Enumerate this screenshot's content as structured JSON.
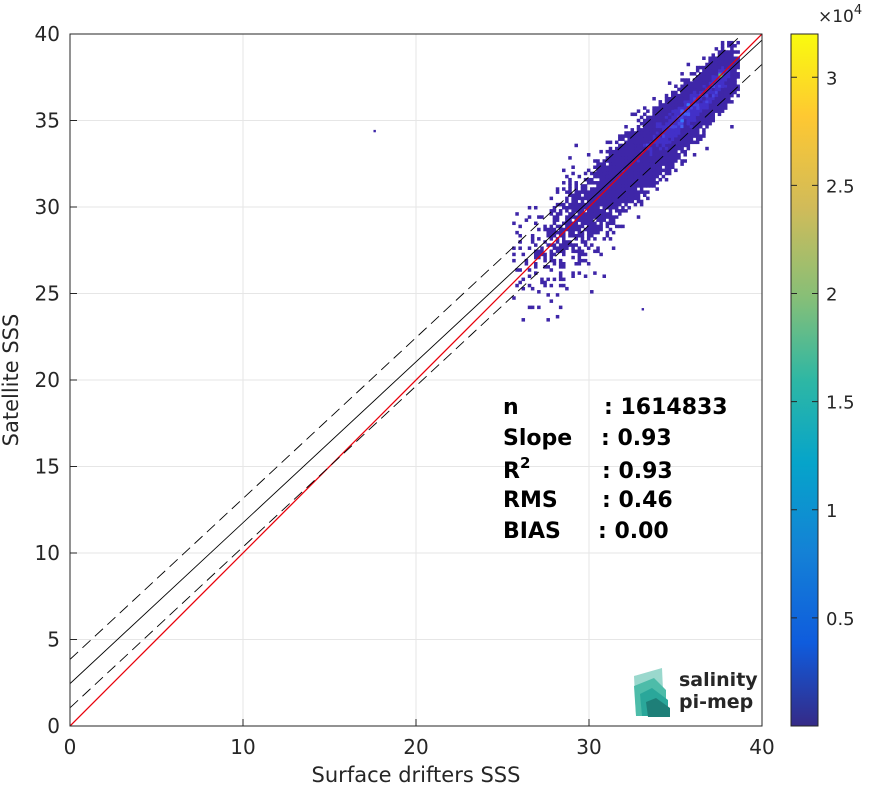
{
  "chart_data": {
    "type": "heatmap",
    "subtype": "2d-density-scatter",
    "xlabel": "Surface drifters SSS",
    "ylabel": "Satellite SSS",
    "xlim": [
      0,
      40
    ],
    "ylim": [
      0,
      40
    ],
    "x_ticks": [
      "0",
      "10",
      "20",
      "30",
      "40"
    ],
    "y_ticks": [
      "0",
      "5",
      "10",
      "15",
      "20",
      "25",
      "30",
      "35",
      "40"
    ],
    "grid": true,
    "colormap": "parula",
    "colorbar": {
      "range": [
        0,
        32000
      ],
      "exponent_label": "×10",
      "exponent_power": "4",
      "ticks": [
        {
          "label": "0.5",
          "value": 5000
        },
        {
          "label": "1",
          "value": 10000
        },
        {
          "label": "1.5",
          "value": 15000
        },
        {
          "label": "2",
          "value": 20000
        },
        {
          "label": "2.5",
          "value": 25000
        },
        {
          "label": "3",
          "value": 30000
        }
      ]
    },
    "lines": [
      {
        "kind": "one-to-one",
        "color": "#e8000b",
        "style": "solid",
        "from": [
          0,
          0
        ],
        "to": [
          40,
          40
        ]
      },
      {
        "kind": "regression",
        "color": "#000000",
        "style": "solid",
        "slope": 0.93,
        "intercept": 2.45
      },
      {
        "kind": "regression-plus-1sd",
        "color": "#000000",
        "style": "dashed",
        "slope": 0.93,
        "intercept": 3.85
      },
      {
        "kind": "regression-minus-1sd",
        "color": "#000000",
        "style": "dashed",
        "slope": 0.93,
        "intercept": 1.05
      }
    ],
    "density_clusters": [
      {
        "x": 35.8,
        "y": 35.6,
        "sx": 1.3,
        "sy": 1.3,
        "corr": 0.85,
        "n": 4200
      },
      {
        "x": 33.5,
        "y": 33.3,
        "sx": 1.5,
        "sy": 1.5,
        "corr": 0.8,
        "n": 2600
      },
      {
        "x": 31.5,
        "y": 31.3,
        "sx": 1.2,
        "sy": 1.3,
        "corr": 0.7,
        "n": 900
      },
      {
        "x": 37.6,
        "y": 37.4,
        "sx": 0.45,
        "sy": 0.8,
        "corr": 0.5,
        "n": 900
      },
      {
        "x": 29.0,
        "y": 28.8,
        "sx": 1.3,
        "sy": 1.7,
        "corr": 0.4,
        "n": 350
      },
      {
        "x": 27.0,
        "y": 27.0,
        "sx": 1.4,
        "sy": 1.8,
        "corr": 0.3,
        "n": 90
      }
    ],
    "peak": {
      "x": 37.6,
      "y": 37.6
    },
    "outliers": [
      {
        "x": 17.6,
        "y": 34.4
      },
      {
        "x": 33.1,
        "y": 24.1
      }
    ],
    "stats": [
      {
        "label": "n",
        "sep": ": ",
        "value": "1614833"
      },
      {
        "label": "Slope",
        "sep": ": ",
        "value": "0.93"
      },
      {
        "label": "R",
        "sup": "2",
        "sep": ": ",
        "value": "0.93"
      },
      {
        "label": "RMS",
        "sep": ": ",
        "value": "0.46"
      },
      {
        "label": "BIAS",
        "sep": ": ",
        "value": "0.00"
      }
    ]
  },
  "logo": {
    "line1": "salinity",
    "line2": "pi-mep",
    "color1": "#2aa79a",
    "color2": "#20555c"
  }
}
